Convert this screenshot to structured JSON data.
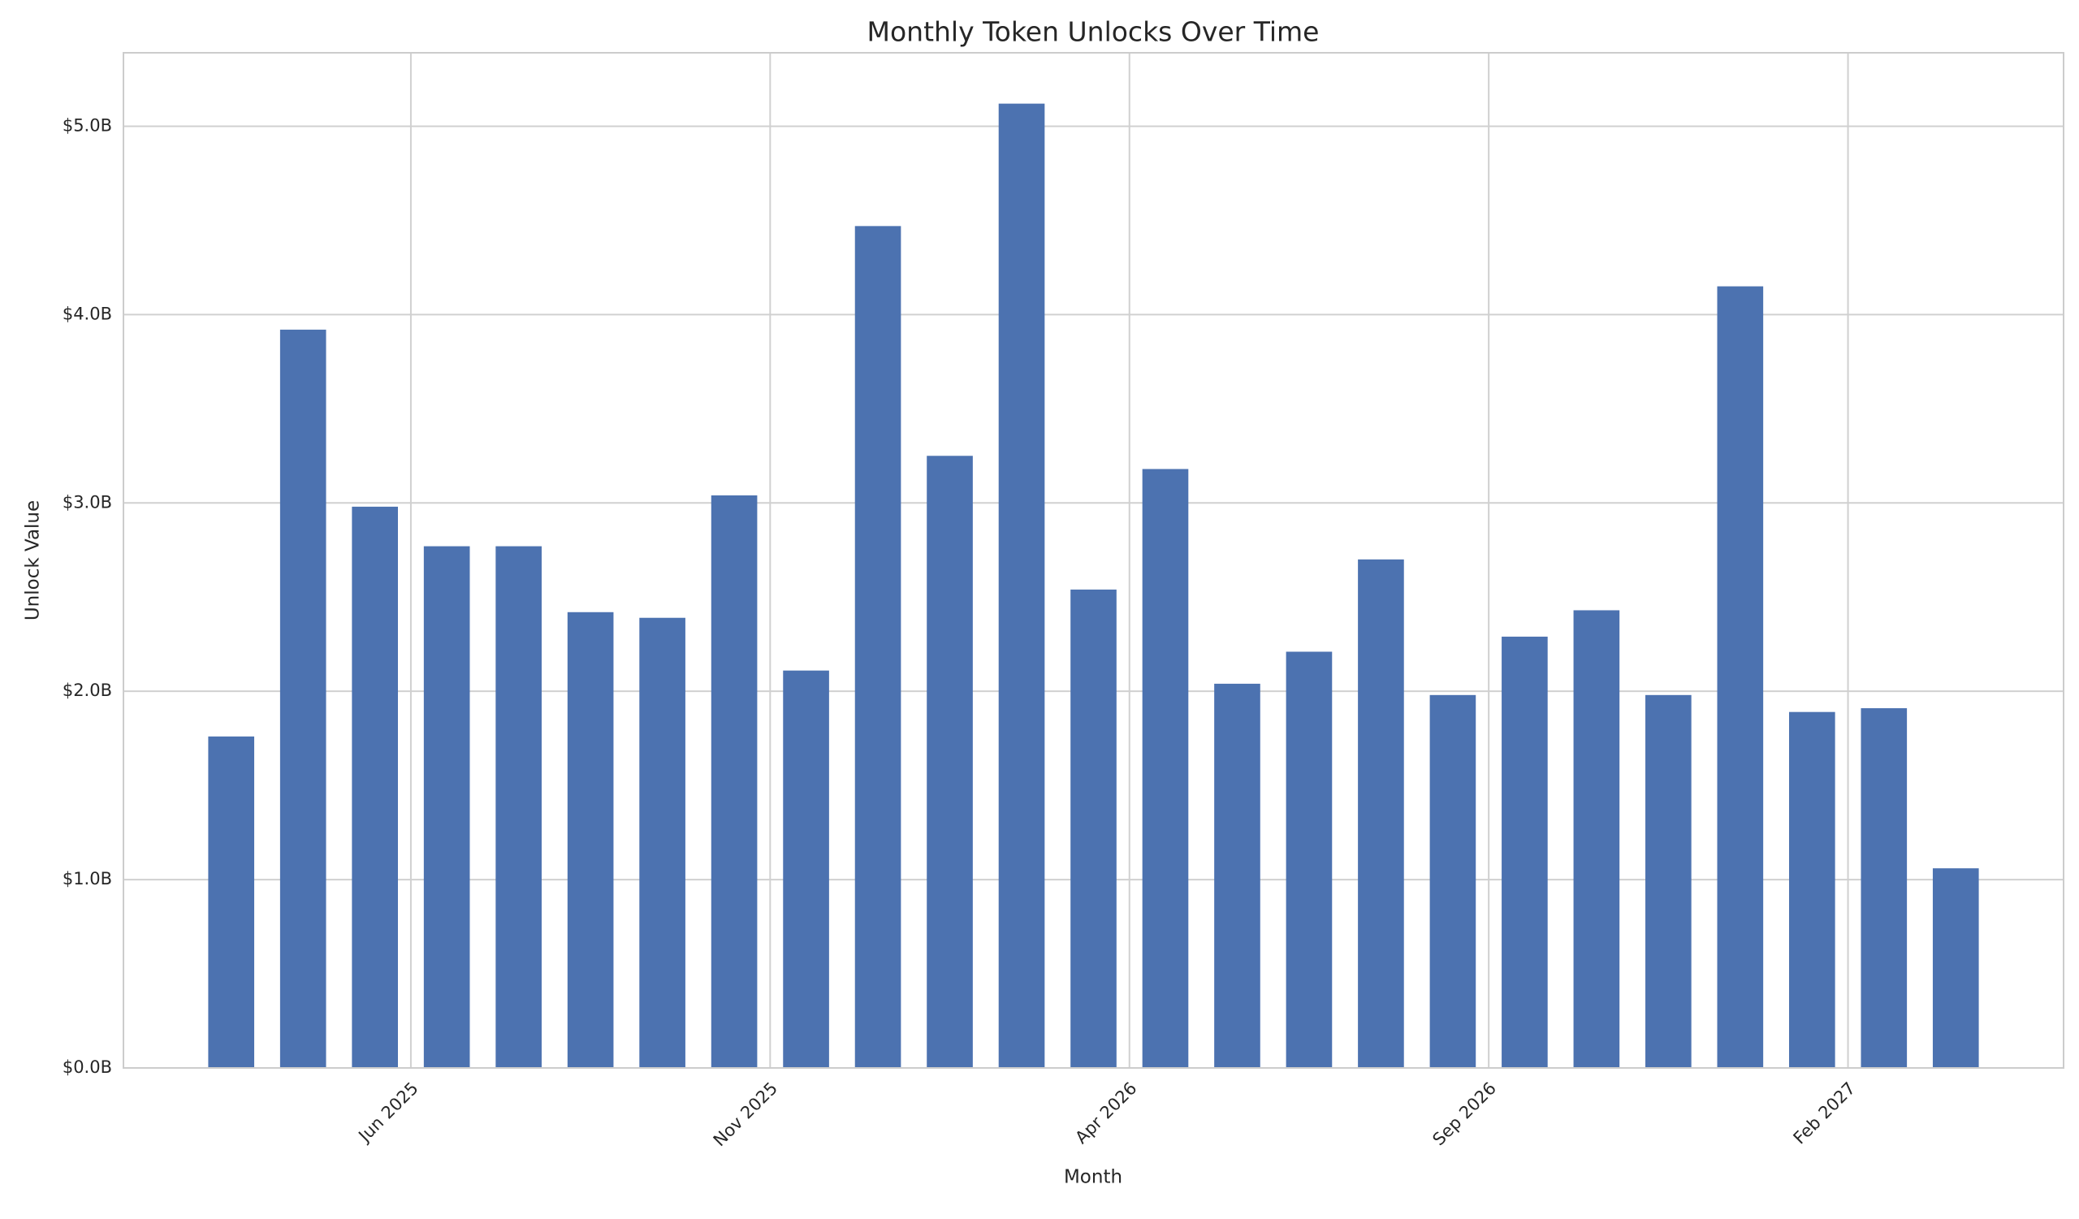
{
  "chart_data": {
    "type": "bar",
    "title": "Monthly Token Unlocks Over Time",
    "x_label": "Month",
    "y_label": "Unlock Value",
    "x": [
      "2025-03",
      "2025-04",
      "2025-05",
      "2025-06",
      "2025-07",
      "2025-08",
      "2025-09",
      "2025-10",
      "2025-11",
      "2025-12",
      "2026-01",
      "2026-02",
      "2026-03",
      "2026-04",
      "2026-05",
      "2026-06",
      "2026-07",
      "2026-08",
      "2026-09",
      "2026-10",
      "2026-11",
      "2026-12",
      "2027-01",
      "2027-02",
      "2027-03"
    ],
    "values": [
      1760000000,
      3920000000,
      2980000000,
      2770000000,
      2770000000,
      2420000000,
      2390000000,
      3040000000,
      2110000000,
      4470000000,
      3250000000,
      5120000000,
      2540000000,
      3180000000,
      2040000000,
      2210000000,
      2700000000,
      1980000000,
      2290000000,
      2430000000,
      1980000000,
      4150000000,
      1890000000,
      1910000000,
      1060000000
    ],
    "color": "#4c72b0",
    "xlim": [
      "2025-02",
      "2027-05"
    ],
    "xticks": [
      {
        "value": "2025-06",
        "label": "Jun 2025"
      },
      {
        "value": "2025-11",
        "label": "Nov 2025"
      },
      {
        "value": "2026-04",
        "label": "Apr 2026"
      },
      {
        "value": "2026-09",
        "label": "Sep 2026"
      },
      {
        "value": "2027-02",
        "label": "Feb 2027"
      }
    ],
    "ylim": [
      0,
      5390000000
    ],
    "yticks": [
      {
        "value": 0,
        "label": "$0.0B"
      },
      {
        "value": 1000000000,
        "label": "$1.0B"
      },
      {
        "value": 2000000000,
        "label": "$2.0B"
      },
      {
        "value": 3000000000,
        "label": "$3.0B"
      },
      {
        "value": 4000000000,
        "label": "$4.0B"
      },
      {
        "value": 5000000000,
        "label": "$5.0B"
      }
    ],
    "grid": true
  }
}
